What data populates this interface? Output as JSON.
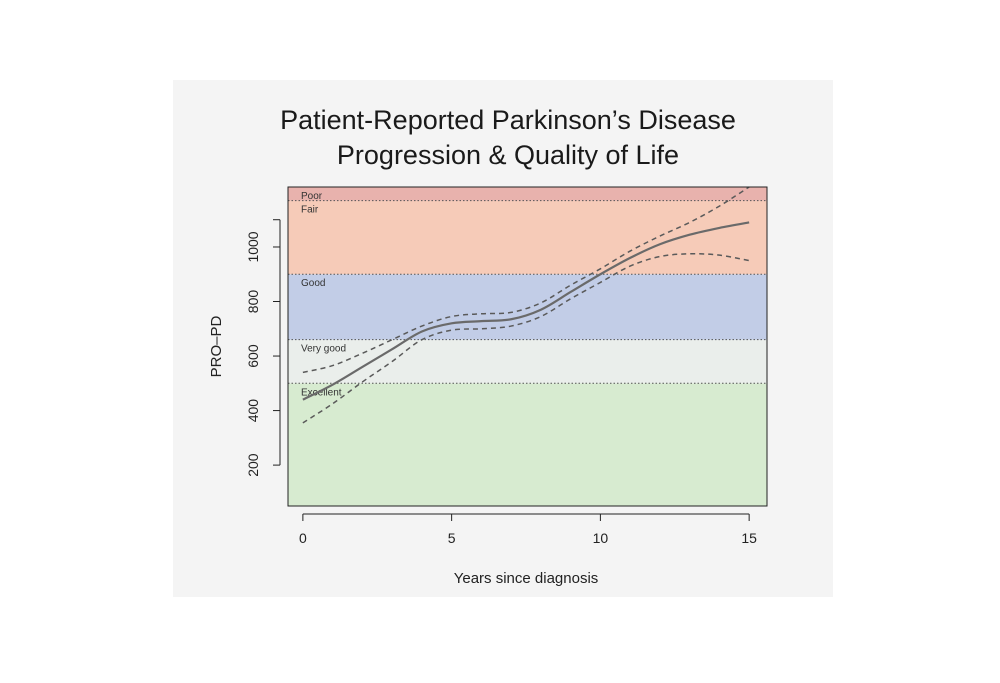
{
  "chart_data": {
    "type": "line",
    "title_lines": [
      "Patient-Reported Parkinson’s Disease",
      "Progression & Quality of Life"
    ],
    "xlabel": "Years since diagnosis",
    "ylabel": "PRO–PD",
    "xlim": [
      -0.5,
      15.6
    ],
    "ylim": [
      50,
      1220
    ],
    "x_ticks": [
      0,
      5,
      10,
      15
    ],
    "y_ticks": [
      200,
      400,
      600,
      800,
      1000,
      1100
    ],
    "y_tick_labels": [
      "200",
      "400",
      "600",
      "800",
      "1000",
      ""
    ],
    "bands": [
      {
        "label": "Excellent",
        "from": 50,
        "to": 500,
        "color": "#d7ebd0"
      },
      {
        "label": "Very good",
        "from": 500,
        "to": 660,
        "color": "#eaeeeb"
      },
      {
        "label": "Good",
        "from": 660,
        "to": 900,
        "color": "#c2cde7"
      },
      {
        "label": "Fair",
        "from": 900,
        "to": 1170,
        "color": "#f6cbb8"
      },
      {
        "label": "Poor",
        "from": 1170,
        "to": 1220,
        "color": "#e8b2ad"
      }
    ],
    "series": [
      {
        "style": "solid",
        "x": [
          0,
          1,
          2,
          3,
          4,
          5,
          6,
          7,
          8,
          9,
          10,
          11,
          12,
          13,
          14,
          15
        ],
        "y": [
          440,
          495,
          560,
          625,
          690,
          720,
          728,
          735,
          770,
          835,
          900,
          960,
          1010,
          1045,
          1070,
          1090
        ]
      },
      {
        "style": "dashed",
        "x": [
          0,
          1,
          2,
          3,
          4,
          5,
          6,
          7,
          8,
          9,
          10,
          11,
          12,
          13,
          14,
          15
        ],
        "y": [
          540,
          565,
          610,
          660,
          710,
          745,
          755,
          760,
          795,
          860,
          920,
          985,
          1040,
          1090,
          1150,
          1220
        ]
      },
      {
        "style": "dashed",
        "x": [
          0,
          1,
          2,
          3,
          4,
          5,
          6,
          7,
          8,
          9,
          10,
          11,
          12,
          13,
          14,
          15
        ],
        "y": [
          355,
          425,
          505,
          580,
          660,
          695,
          700,
          710,
          745,
          810,
          870,
          930,
          965,
          975,
          970,
          950
        ]
      }
    ]
  }
}
